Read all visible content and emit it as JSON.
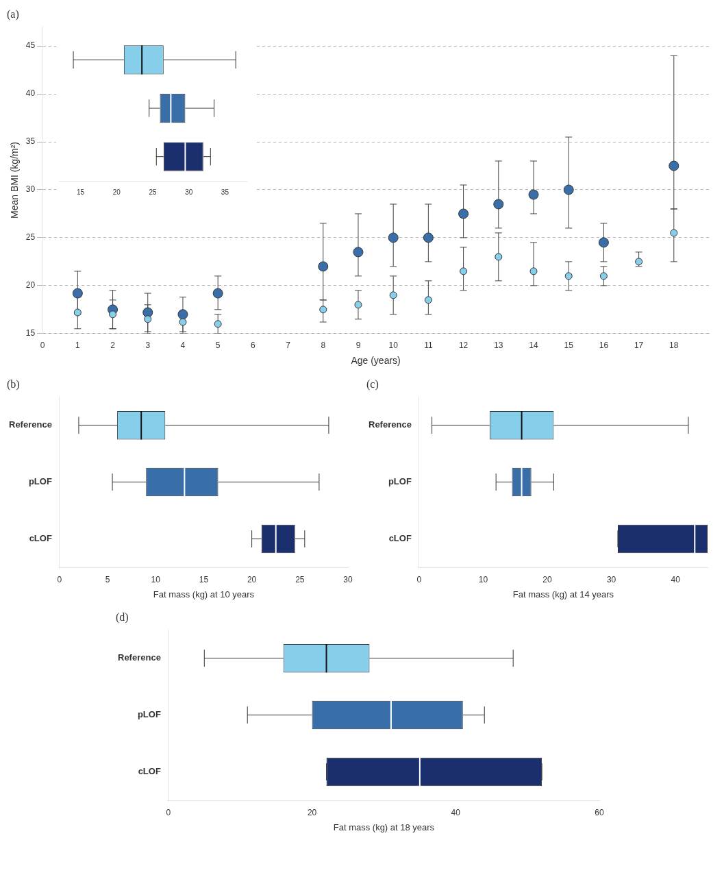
{
  "chart_data": [
    {
      "type": "scatter",
      "title": "(a)",
      "xlabel": "Age (years)",
      "ylabel": "Mean BMI (kg/m²)",
      "xlim": [
        0,
        19
      ],
      "xticks": [
        0,
        1,
        2,
        3,
        4,
        5,
        6,
        7,
        8,
        9,
        10,
        11,
        12,
        13,
        14,
        15,
        16,
        17,
        18
      ],
      "ylim": [
        15,
        47
      ],
      "yticks": [
        15,
        20,
        25,
        30,
        35,
        40,
        45
      ],
      "grid": true,
      "series": [
        {
          "color": "#87CEEB",
          "x": [
            1,
            2,
            3,
            4,
            5,
            8,
            9,
            10,
            11,
            12,
            13,
            14,
            15,
            16,
            17,
            18
          ],
          "values": [
            17.2,
            17.0,
            16.5,
            16.2,
            16.0,
            17.5,
            18.0,
            19.0,
            18.5,
            21.5,
            23.0,
            21.5,
            21.0,
            21.0,
            22.5,
            25.5
          ],
          "ci_low": [
            15.5,
            15.5,
            15.0,
            15.0,
            15.0,
            16.2,
            16.5,
            17.0,
            17.0,
            19.5,
            20.5,
            20.0,
            19.5,
            20.0,
            22.0,
            22.5
          ],
          "ci_high": [
            18.8,
            18.5,
            18.0,
            17.3,
            17.0,
            18.5,
            19.5,
            21.0,
            20.5,
            24.0,
            25.5,
            24.5,
            22.5,
            22.0,
            23.5,
            28.0
          ]
        },
        {
          "color": "#3A6EA8",
          "x": [
            1,
            2,
            3,
            4,
            5,
            8,
            9,
            10,
            11,
            12,
            13,
            14,
            15,
            16,
            18
          ],
          "values": [
            19.2,
            17.5,
            17.2,
            17.0,
            19.2,
            22.0,
            23.5,
            25.0,
            25.0,
            27.5,
            28.5,
            29.5,
            30.0,
            24.5,
            32.5
          ],
          "ci_low": [
            17.0,
            15.5,
            15.2,
            15.2,
            17.5,
            18.5,
            21.0,
            22.0,
            22.5,
            25.0,
            26.0,
            27.5,
            26.0,
            22.5,
            28.0
          ],
          "ci_high": [
            21.5,
            19.5,
            19.2,
            18.8,
            21.0,
            26.5,
            27.5,
            28.5,
            28.5,
            30.5,
            33.0,
            33.0,
            35.5,
            26.5,
            44.0
          ]
        }
      ]
    },
    {
      "type": "boxplot",
      "orientation": "horizontal",
      "tick_labels": "x",
      "grid": false,
      "xlim": [
        12,
        38
      ],
      "xticks": [
        15,
        20,
        25,
        30,
        35
      ],
      "colors": [
        "#87CEEB",
        "#3A6EA8",
        "#1B2F6E"
      ],
      "boxes": [
        {
          "q1": 21.0,
          "median": 23.5,
          "q3": 26.5,
          "whisker_low": 14.0,
          "whisker_high": 36.5
        },
        {
          "q1": 26.0,
          "median": 27.5,
          "q3": 29.5,
          "whisker_low": 24.5,
          "whisker_high": 33.5
        },
        {
          "q1": 26.5,
          "median": 29.5,
          "q3": 32.0,
          "whisker_low": 25.5,
          "whisker_high": 33.0
        }
      ]
    },
    {
      "type": "boxplot",
      "orientation": "horizontal",
      "title": "(b)",
      "xlabel": "Fat mass (kg) at 10 years",
      "grid": false,
      "xlim": [
        0,
        30
      ],
      "xticks": [
        0,
        5,
        10,
        15,
        20,
        25,
        30
      ],
      "categories": [
        "Reference",
        "pLOF",
        "cLOF"
      ],
      "colors": [
        "#87CEEB",
        "#3A6EA8",
        "#1B2F6E"
      ],
      "boxes": [
        {
          "q1": 6.0,
          "median": 8.5,
          "q3": 11.0,
          "whisker_low": 2.0,
          "whisker_high": 28.0
        },
        {
          "q1": 9.0,
          "median": 13.0,
          "q3": 16.5,
          "whisker_low": 5.5,
          "whisker_high": 27.0
        },
        {
          "q1": 21.0,
          "median": 22.5,
          "q3": 24.5,
          "whisker_low": 20.0,
          "whisker_high": 25.5
        }
      ]
    },
    {
      "type": "boxplot",
      "orientation": "horizontal",
      "title": "(c)",
      "xlabel": "Fat mass (kg) at 14 years",
      "grid": false,
      "xlim": [
        0,
        45
      ],
      "xticks": [
        0,
        10,
        20,
        30,
        40
      ],
      "categories": [
        "Reference",
        "pLOF",
        "cLOF"
      ],
      "colors": [
        "#87CEEB",
        "#3A6EA8",
        "#1B2F6E"
      ],
      "boxes": [
        {
          "q1": 11.0,
          "median": 16.0,
          "q3": 21.0,
          "whisker_low": 2.0,
          "whisker_high": 42.0
        },
        {
          "q1": 14.5,
          "median": 16.0,
          "q3": 17.5,
          "whisker_low": 12.0,
          "whisker_high": 21.0
        },
        {
          "q1": 31.0,
          "median": 43.0,
          "q3": 45.0,
          "whisker_low": 31.0,
          "whisker_high": 45.0
        }
      ]
    },
    {
      "type": "boxplot",
      "orientation": "horizontal",
      "title": "(d)",
      "xlabel": "Fat mass (kg) at 18 years",
      "grid": false,
      "xlim": [
        0,
        60
      ],
      "xticks": [
        0,
        20,
        40,
        60
      ],
      "categories": [
        "Reference",
        "pLOF",
        "cLOF"
      ],
      "colors": [
        "#87CEEB",
        "#3A6EA8",
        "#1B2F6E"
      ],
      "boxes": [
        {
          "q1": 16.0,
          "median": 22.0,
          "q3": 28.0,
          "whisker_low": 5.0,
          "whisker_high": 48.0
        },
        {
          "q1": 20.0,
          "median": 31.0,
          "q3": 41.0,
          "whisker_low": 11.0,
          "whisker_high": 44.0
        },
        {
          "q1": 22.0,
          "median": 35.0,
          "q3": 52.0,
          "whisker_low": 22.0,
          "whisker_high": 52.0
        }
      ]
    }
  ]
}
